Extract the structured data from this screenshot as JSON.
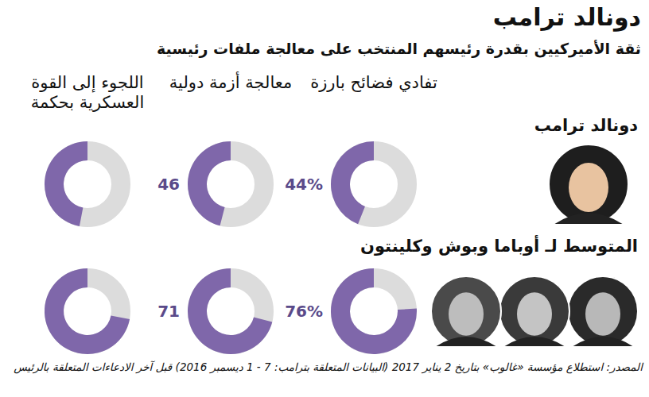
{
  "chart_data": {
    "type": "donut",
    "title": "دونالد ترامب",
    "subtitle": "ثقة الأميركيين بقدرة رئيسهم المنتخب على معالجة ملفات رئيسية",
    "categories": [
      "تفادي فضائح بارزة",
      "معالجة أزمة دولية",
      "اللجوء إلى القوة العسكرية بحكمة"
    ],
    "series": [
      {
        "name": "دونالد ترامب",
        "values": [
          44,
          46,
          47
        ],
        "value_labels": [
          "44%",
          "46",
          null
        ]
      },
      {
        "name": "المتوسط لـ أوباما وبوش وكلينتون",
        "values": [
          76,
          71,
          72
        ],
        "value_labels": [
          "76%",
          "71",
          null
        ]
      }
    ],
    "ylim": [
      0,
      100
    ],
    "color": "#7f67aa",
    "data_labels": true,
    "tick_labels": false,
    "source": "المصدر: استطلاع مؤسسة «غالوب» بتاريخ 2 يناير 2017 (البيانات المتعلقة بترامب: 7 - 1 ديسمبر 2016) قبل آخر الادعاءات المتعلقة بالرئيس"
  }
}
